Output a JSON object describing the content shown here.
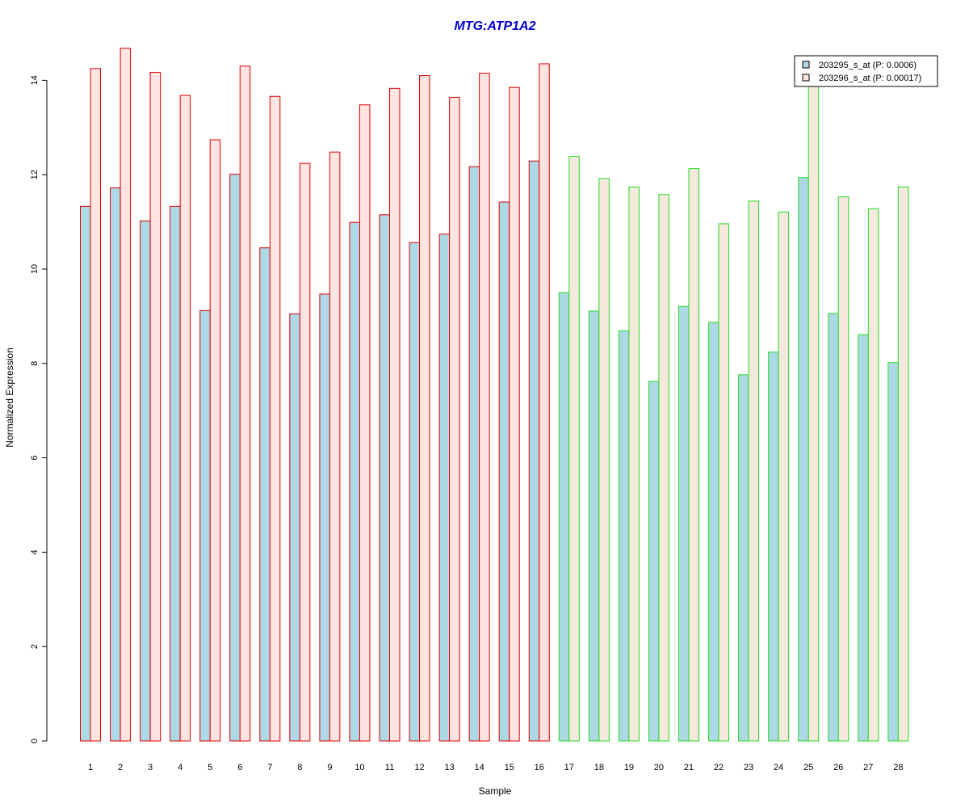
{
  "chart_data": {
    "type": "bar",
    "title": "MTG:ATP1A2",
    "title_color": "#0000cc",
    "xlabel": "Sample",
    "ylabel": "Normalized Expression",
    "ylim": [
      0,
      14.7
    ],
    "y_ticks": [
      0,
      2,
      4,
      6,
      8,
      10,
      12,
      14
    ],
    "grid": false,
    "legend_position": "top-right",
    "categories": [
      "1",
      "2",
      "3",
      "4",
      "5",
      "6",
      "7",
      "8",
      "9",
      "10",
      "11",
      "12",
      "13",
      "14",
      "15",
      "16",
      "17",
      "18",
      "19",
      "20",
      "21",
      "22",
      "23",
      "24",
      "25",
      "26",
      "27",
      "28"
    ],
    "groups": [
      {
        "samples": "1-16",
        "border_color": "#dd0000"
      },
      {
        "samples": "17-28",
        "border_color": "#22dd22"
      }
    ],
    "series": [
      {
        "name": "203295_s_at (P: 0.0006)",
        "fill": "#add8e6",
        "values": [
          11.33,
          11.72,
          11.02,
          11.33,
          9.12,
          12.01,
          10.45,
          9.05,
          9.47,
          10.99,
          11.15,
          10.56,
          10.74,
          12.17,
          11.42,
          12.29,
          9.5,
          9.11,
          8.69,
          7.62,
          9.21,
          8.87,
          7.76,
          8.24,
          11.94,
          9.06,
          8.61,
          8.02
        ]
      },
      {
        "name": "203296_s_at (P: 0.00017)",
        "fill_group1": "#ffe4e1",
        "fill_group2": "#f5e8dc",
        "values": [
          14.25,
          14.68,
          14.17,
          13.68,
          12.74,
          14.3,
          13.66,
          12.24,
          12.48,
          13.48,
          13.83,
          14.1,
          13.64,
          14.15,
          13.85,
          14.35,
          12.39,
          11.92,
          11.74,
          11.58,
          12.13,
          10.96,
          11.44,
          11.21,
          14.0,
          11.53,
          11.28,
          11.74
        ]
      }
    ]
  }
}
